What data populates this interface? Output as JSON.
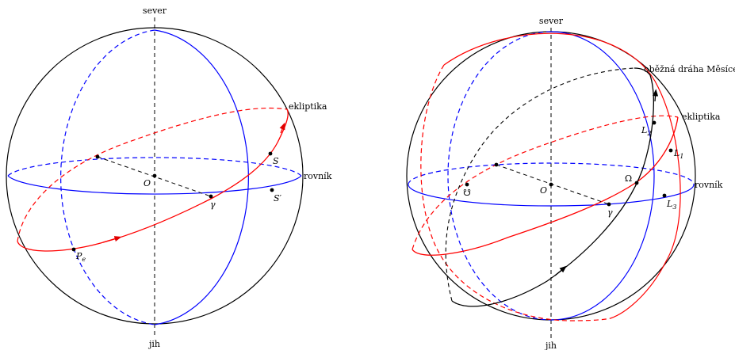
{
  "left_figure": {
    "labels": {
      "north": "sever",
      "south": "jih",
      "center": "O",
      "ecliptic": "ekliptika",
      "equator": "rovník",
      "sun": "S",
      "sun_projection": "S′",
      "vernal_point": "γ",
      "perihelion": "P",
      "perihelion_sub": "e"
    }
  },
  "right_figure": {
    "labels": {
      "north": "sever",
      "south": "jih",
      "center": "O",
      "ecliptic": "ekliptika",
      "equator": "rovník",
      "moon_orbit": "oběžná dráha Měsíce",
      "ascending_node": "Ω",
      "descending_node": "☋",
      "vernal_point": "γ",
      "L1": "L",
      "L1_sub": "1",
      "L2": "L",
      "L2_sub": "2",
      "L3": "L",
      "L3_sub": "3"
    }
  },
  "colors": {
    "sphere": "#000000",
    "equator": "#0000ff",
    "ecliptic": "#ff0000",
    "moon_orbit": "#000000"
  }
}
